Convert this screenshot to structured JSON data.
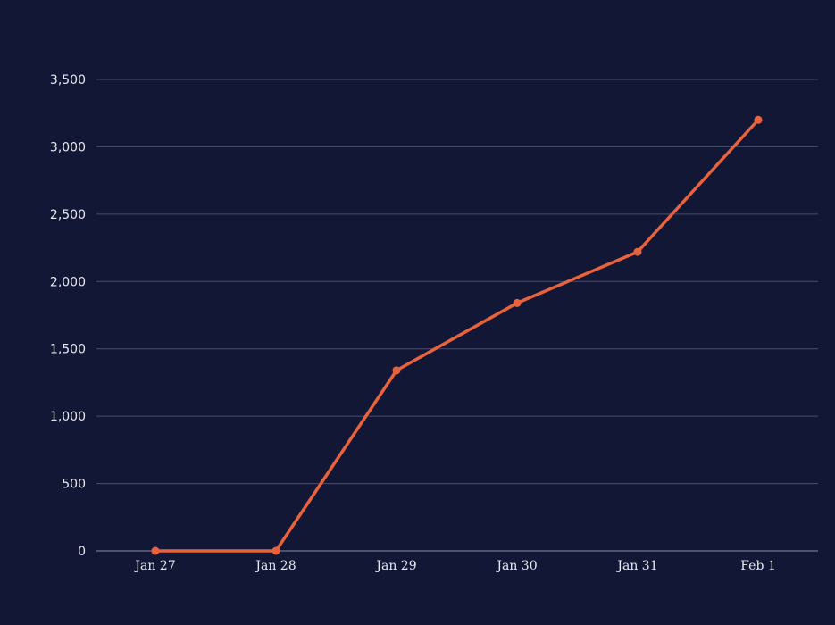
{
  "colors": {
    "background": "#131736",
    "grid": "#4a4e6c",
    "axis": "#8a8da6",
    "line": "#e8623c",
    "text": "#e8e9f2"
  },
  "chart_data": {
    "type": "line",
    "title": "",
    "xlabel": "",
    "ylabel": "",
    "categories": [
      "Jan 27",
      "Jan 28",
      "Jan 29",
      "Jan 30",
      "Jan 31",
      "Feb 1"
    ],
    "series": [
      {
        "values": [
          0,
          0,
          1340,
          1840,
          2220,
          3200
        ]
      }
    ],
    "ylim": [
      0,
      3500
    ],
    "yticks": [
      0,
      500,
      1000,
      1500,
      2000,
      2500,
      3000,
      3500
    ],
    "ytick_labels": [
      "0",
      "500",
      "1,000",
      "1,500",
      "2,000",
      "2,500",
      "3,000",
      "3,500"
    ],
    "grid": true,
    "legend": "none",
    "markers": true
  }
}
